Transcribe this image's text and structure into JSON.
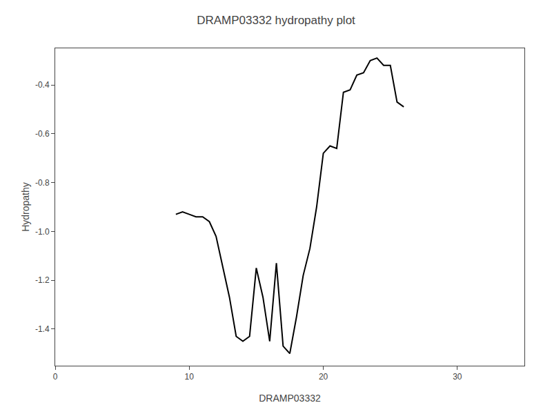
{
  "chart_data": {
    "type": "line",
    "title": "DRAMP03332 hydropathy plot",
    "xlabel": "DRAMP03332",
    "ylabel": "Hydropathy",
    "x": [
      9.0,
      9.5,
      10.0,
      10.5,
      11.0,
      11.5,
      12.0,
      12.5,
      13.0,
      13.5,
      14.0,
      14.5,
      15.0,
      15.5,
      16.0,
      16.5,
      17.0,
      17.5,
      18.0,
      18.5,
      19.0,
      19.5,
      20.0,
      20.5,
      21.0,
      21.5,
      22.0,
      22.5,
      23.0,
      23.5,
      24.0,
      24.5,
      25.0,
      25.5,
      26.0
    ],
    "values": [
      -0.93,
      -0.92,
      -0.93,
      -0.94,
      -0.94,
      -0.96,
      -1.02,
      -1.15,
      -1.27,
      -1.43,
      -1.45,
      -1.43,
      -1.15,
      -1.27,
      -1.45,
      -1.13,
      -1.47,
      -1.5,
      -1.35,
      -1.18,
      -1.07,
      -0.9,
      -0.68,
      -0.65,
      -0.66,
      -0.43,
      -0.42,
      -0.36,
      -0.35,
      -0.3,
      -0.29,
      -0.32,
      -0.32,
      -0.47,
      -0.49
    ],
    "color": "#000000",
    "xlim": [
      0,
      35
    ],
    "xticks": [
      0,
      10,
      20,
      30
    ],
    "ylim": [
      -1.55,
      -0.25
    ],
    "yticks": [
      -1.4,
      -1.2,
      {
        "value": -1.0,
        "label": "-1.0"
      },
      -0.8,
      -0.6,
      -0.4
    ],
    "grid": false
  }
}
